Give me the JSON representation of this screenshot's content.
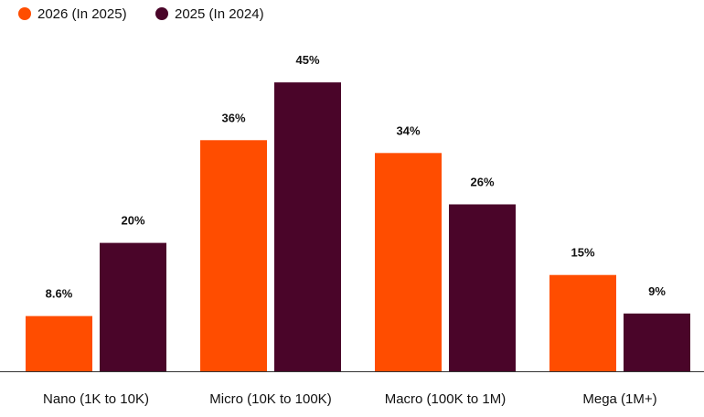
{
  "chart_data": {
    "type": "bar",
    "title": "",
    "xlabel": "",
    "ylabel": "",
    "ylim": [
      0,
      50
    ],
    "grid": false,
    "legend_position": "top-left",
    "categories": [
      "Nano (1K to 10K)",
      "Micro (10K to 100K)",
      "Macro (100K to 1M)",
      "Mega (1M+)"
    ],
    "series": [
      {
        "name": "2026 (In 2025)",
        "color": "#FF4D00",
        "values": [
          8.6,
          36,
          34,
          15
        ],
        "labels": [
          "8.6%",
          "36%",
          "34%",
          "15%"
        ]
      },
      {
        "name": "2025 (In 2024)",
        "color": "#4A0529",
        "values": [
          20,
          45,
          26,
          9
        ],
        "labels": [
          "20%",
          "45%",
          "26%",
          "9%"
        ]
      }
    ],
    "axis_color": "#333333",
    "text_color": "#111111"
  }
}
